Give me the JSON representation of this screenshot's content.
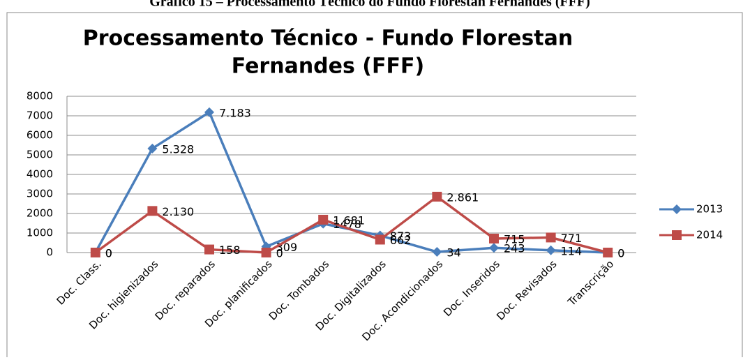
{
  "caption": "Gráfico 15 – Processamento Técnico do Fundo Florestan Fernandes (FFF)",
  "chart_data": {
    "type": "line",
    "title": [
      "Processamento Técnico - Fundo Florestan",
      "Fernandes (FFF)"
    ],
    "categories": [
      "Doc. Class.",
      "Doc. higienizados",
      "Doc. reparados",
      "Doc. planificados",
      "Doc. Tombados",
      "Doc. Digitalizados",
      "Doc. Acondicionados",
      "Doc. Inseridos",
      "Doc. Revisados",
      "Transcrição"
    ],
    "series": [
      {
        "name": "2013",
        "color": "#4a7ebb",
        "marker": "diamond",
        "values": [
          0,
          5328,
          7183,
          309,
          1478,
          873,
          34,
          243,
          114,
          0
        ],
        "value_labels": [
          "0",
          "5.328",
          "7.183",
          "309",
          "1478",
          "873",
          "34",
          "243",
          "114",
          "0"
        ]
      },
      {
        "name": "2014",
        "color": "#be4b48",
        "marker": "square",
        "values": [
          0,
          2130,
          158,
          0,
          1681,
          662,
          2861,
          715,
          771,
          0
        ],
        "value_labels": [
          "0",
          "2.130",
          "158",
          "0",
          "1.681",
          "662",
          "2.861",
          "715",
          "771",
          "0"
        ]
      }
    ],
    "ylim": [
      0,
      8000
    ],
    "yticks": [
      0,
      1000,
      2000,
      3000,
      4000,
      5000,
      6000,
      7000,
      8000
    ],
    "grid": true,
    "legend": "right"
  }
}
